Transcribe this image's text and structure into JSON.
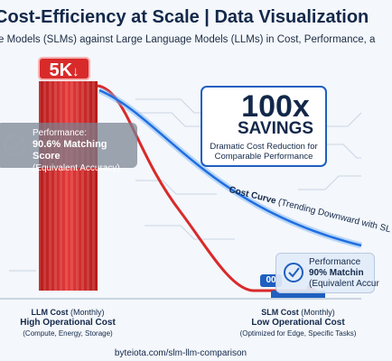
{
  "header": {
    "title": "Cost-Efficiency at Scale | Data Visualization",
    "subtitle": "e Models (SLMs) against Large Language Models (LLMs) in Cost, Performance, a"
  },
  "llm": {
    "badge": "5K",
    "performance": {
      "heading": "Performance:",
      "score": "90.6% Matching Score",
      "note": "(Equivalent Accuracy)"
    },
    "label": {
      "cost": "LLM Cost",
      "period": "(Monthly)",
      "headline": "High Operational Cost",
      "detail": "(Compute, Energy, Storage)"
    }
  },
  "savings": {
    "amount": "100x",
    "word": "SAVINGS",
    "description": "Dramatic Cost Reduction for Comparable Performance"
  },
  "curve": {
    "name": "Cost Curve",
    "note": "(Trending Downward with SL"
  },
  "slm": {
    "badge": "00",
    "performance": {
      "heading": "Performance",
      "score": "90% Matchin",
      "note": "(Equivalent Accur"
    },
    "label": {
      "cost": "SLM Cost",
      "period": "(Monthly)",
      "headline": "Low Operational Cost",
      "detail": "(Optimized for Edge, Specific Tasks)"
    }
  },
  "footer": "byteiota.com/slm-llm-comparison"
}
